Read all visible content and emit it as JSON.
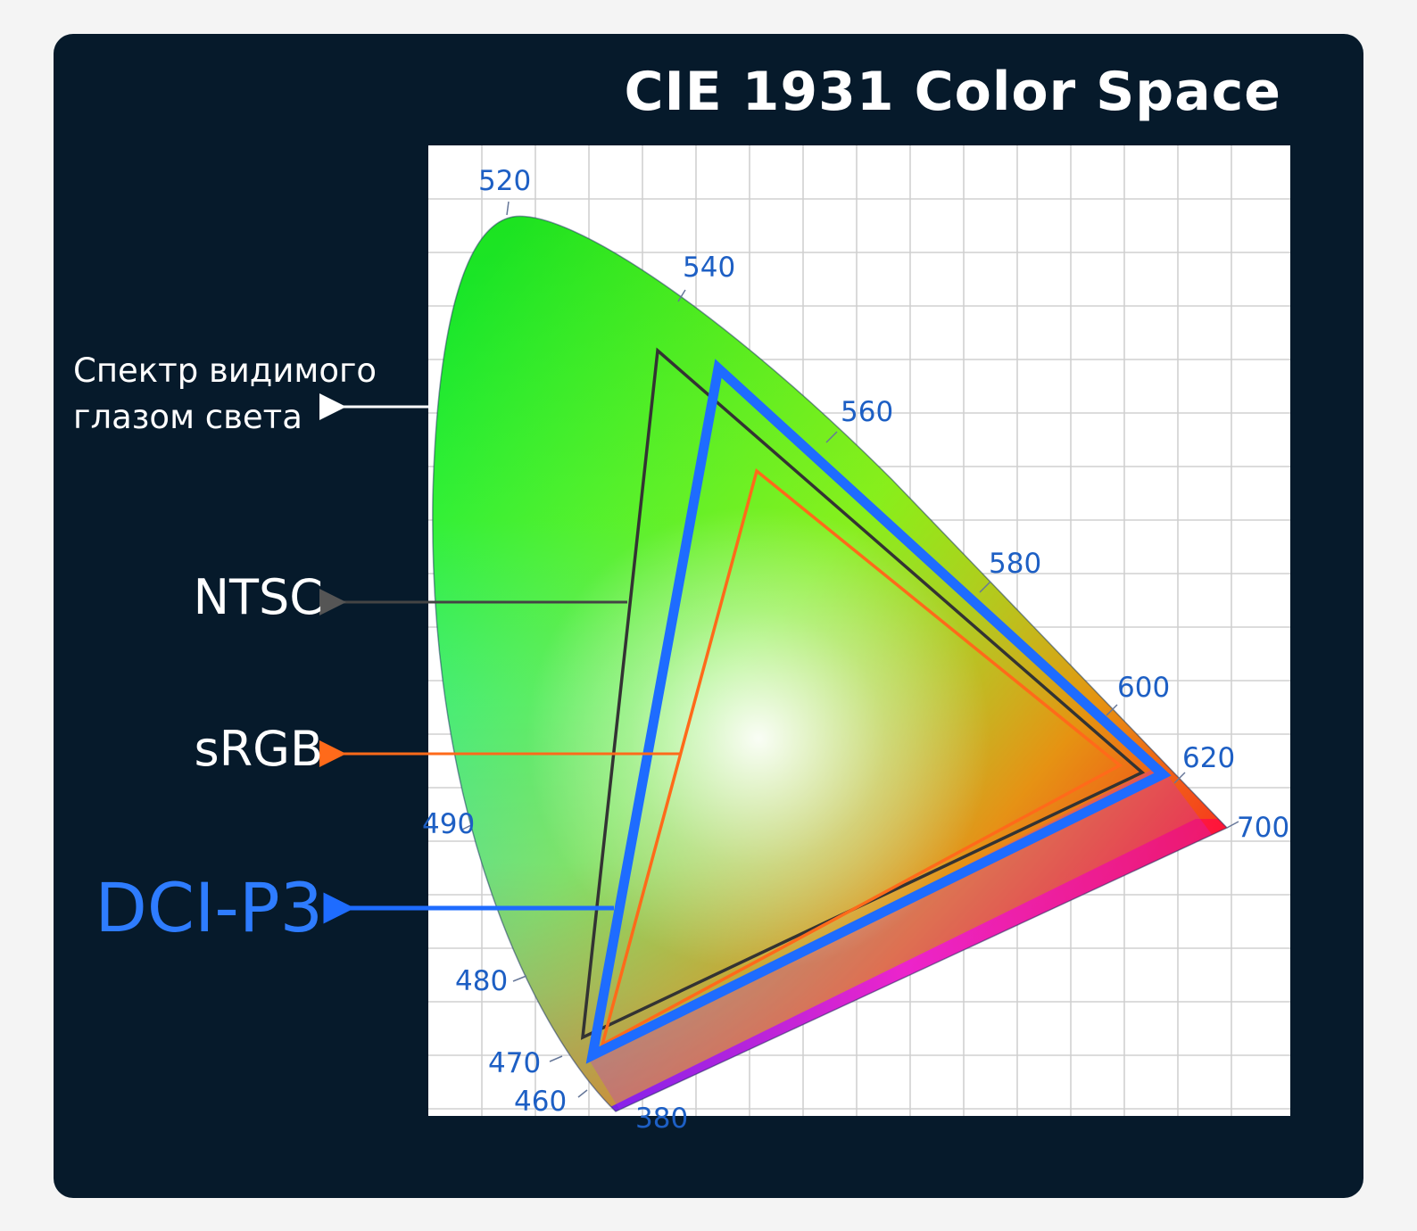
{
  "title": "CIE 1931 Color Space",
  "annotations": {
    "visible_spectrum": [
      "Спектр видимого",
      "глазом света"
    ],
    "ntsc": "NTSC",
    "srgb": "sRGB",
    "dci_p3": "DCI-P3"
  },
  "wavelength_labels": [
    "520",
    "540",
    "560",
    "580",
    "600",
    "620",
    "700",
    "490",
    "480",
    "470",
    "460",
    "380"
  ],
  "colors": {
    "background": "#061a2b",
    "ntsc_outline": "#333333",
    "srgb_outline": "#ff6a1a",
    "dci_p3_outline": "#1e6cff",
    "label_blue": "#1d5fc4"
  }
}
